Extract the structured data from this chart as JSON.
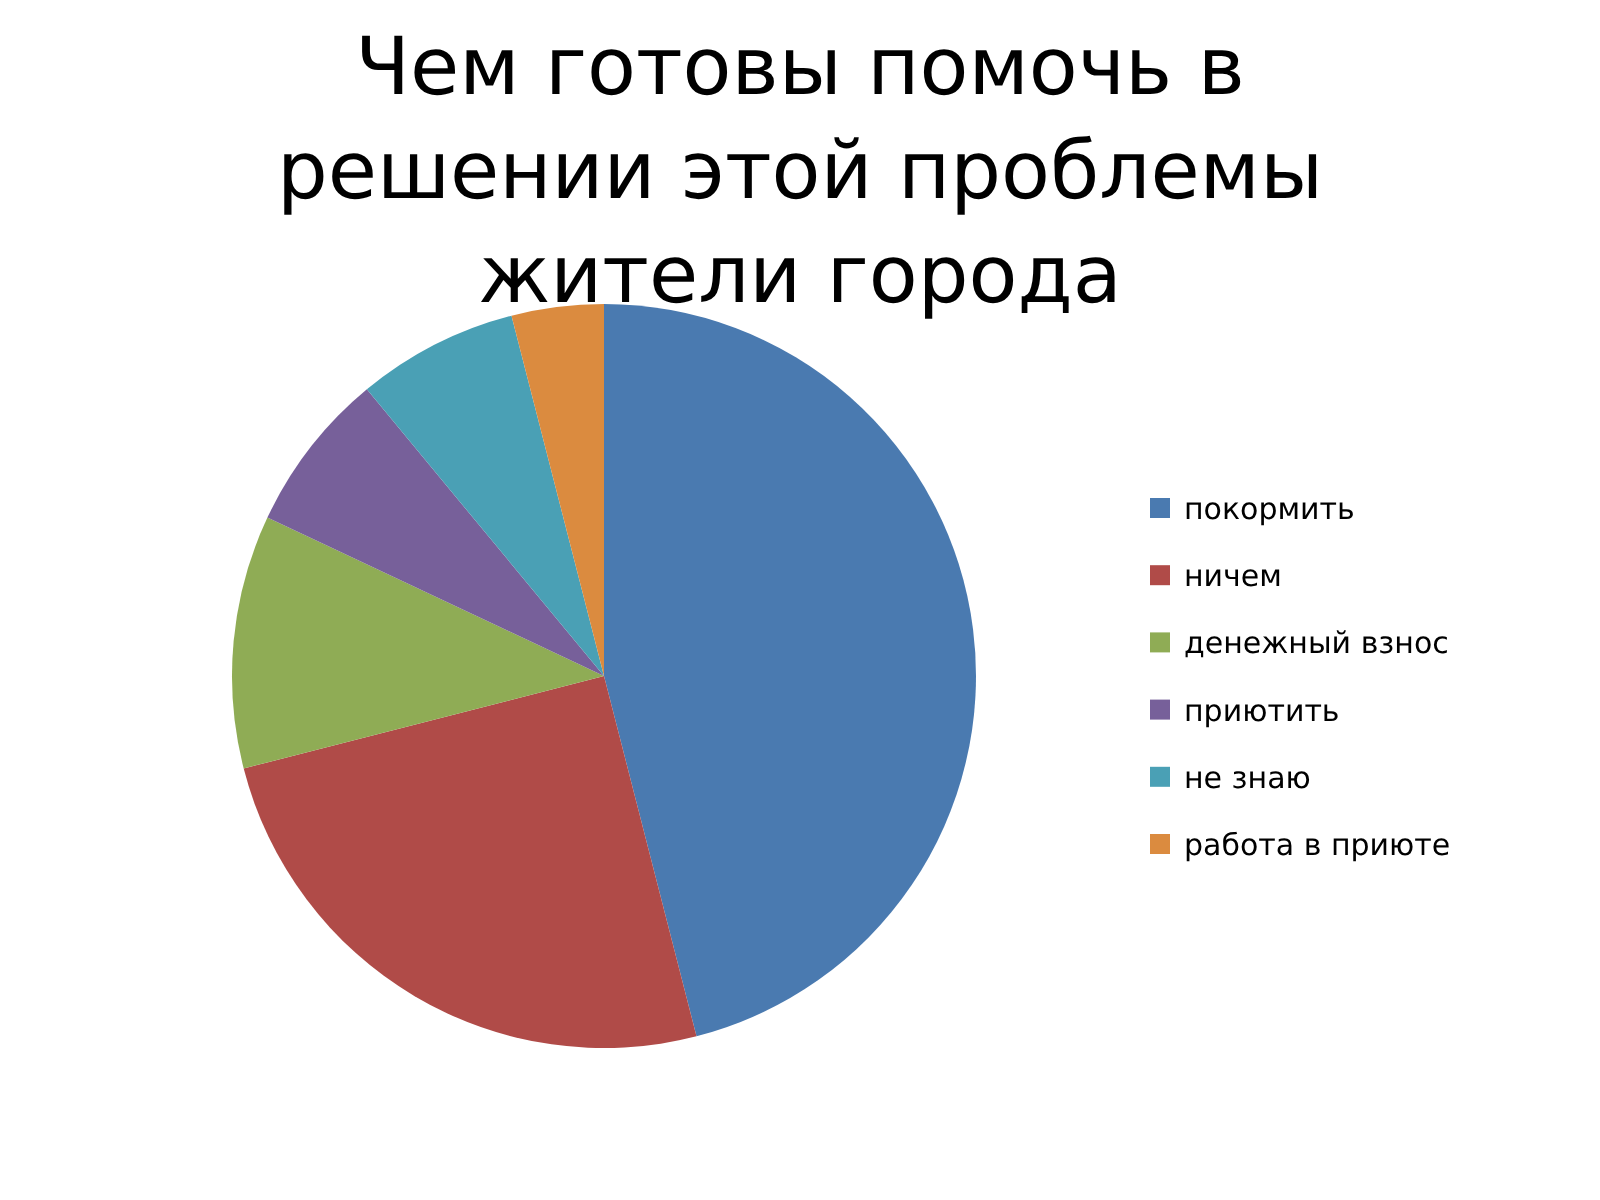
{
  "chart_data": {
    "type": "pie",
    "title": "Чем готовы помочь в решении этой проблемы жители города",
    "categories": [
      "покормить",
      "ничем",
      "денежный взнос",
      "приютить",
      "не знаю",
      "работа в приюте"
    ],
    "values": [
      46,
      25,
      11,
      7,
      7,
      4
    ],
    "colors": [
      "#4a7ab0",
      "#b04b48",
      "#8fac55",
      "#77609a",
      "#4aa0b5",
      "#db8b3f"
    ],
    "legend": "right"
  }
}
